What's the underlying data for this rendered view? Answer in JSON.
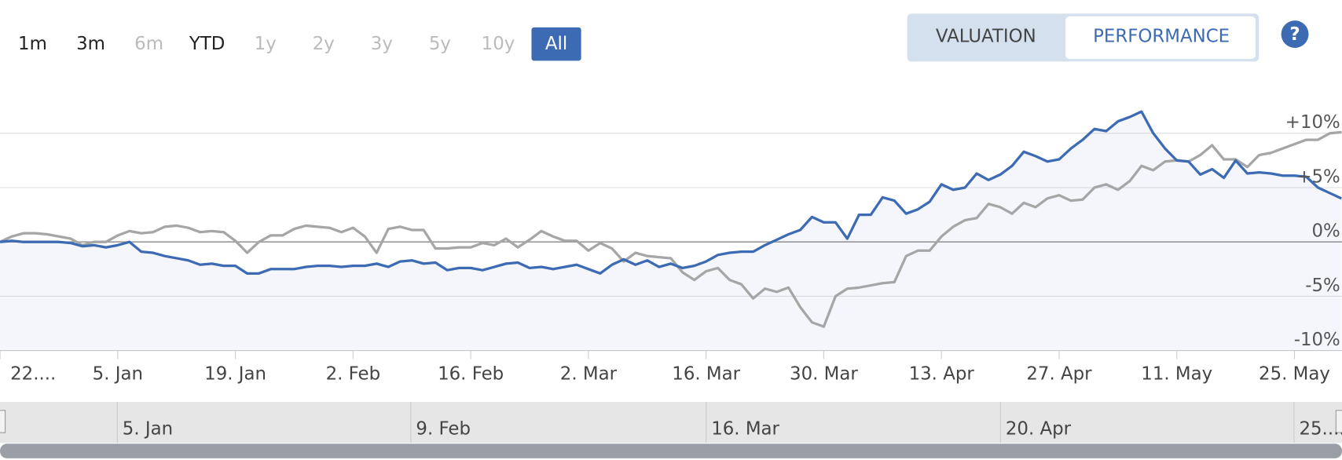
{
  "range_buttons": [
    "1m",
    "3m",
    "6m",
    "YTD",
    "1y",
    "2y",
    "3y",
    "5y",
    "10y",
    "All"
  ],
  "tabs": [
    "VALUATION",
    "PERFORMANCE"
  ],
  "help": "?",
  "chart_data": {
    "type": "line",
    "categories": [
      "22....",
      null,
      null,
      null,
      null,
      null,
      null,
      null,
      null,
      null,
      "5. Jan",
      null,
      null,
      null,
      null,
      null,
      null,
      null,
      null,
      null,
      "19. Jan",
      null,
      null,
      null,
      null,
      null,
      null,
      null,
      null,
      null,
      "2. Feb",
      null,
      null,
      null,
      null,
      null,
      null,
      null,
      null,
      null,
      "16. Feb",
      null,
      null,
      null,
      null,
      null,
      null,
      null,
      null,
      null,
      "2. Mar",
      null,
      null,
      null,
      null,
      null,
      null,
      null,
      null,
      null,
      "16. Mar",
      null,
      null,
      null,
      null,
      null,
      null,
      null,
      null,
      null,
      "30. Mar",
      null,
      null,
      null,
      null,
      null,
      null,
      null,
      null,
      null,
      "13. Apr",
      null,
      null,
      null,
      null,
      null,
      null,
      null,
      null,
      null,
      "27. Apr",
      null,
      null,
      null,
      null,
      null,
      null,
      null,
      null,
      null,
      "11. May",
      null,
      null,
      null,
      null,
      null,
      null,
      null,
      null,
      null,
      "25. May",
      null,
      null,
      null,
      null
    ],
    "series": [
      {
        "color": "#a6a6a6",
        "values": [
          0,
          0.5,
          0.8,
          0.8,
          0.7,
          0.5,
          0.3,
          -0.3,
          0,
          0,
          0.6,
          1.0,
          0.8,
          0.9,
          1.4,
          1.5,
          1.3,
          0.9,
          1.0,
          0.9,
          0.1,
          -1.0,
          0,
          0.6,
          0.6,
          1.2,
          1.5,
          1.4,
          1.3,
          0.9,
          1.3,
          0.5,
          -1.0,
          1.2,
          1.4,
          1.1,
          1.1,
          -0.6,
          -0.6,
          -0.5,
          -0.5,
          -0.1,
          -0.3,
          0.3,
          -0.5,
          0.2,
          1.0,
          0.5,
          0.1,
          0.1,
          -0.8,
          -0.1,
          -0.6,
          -1.8,
          -1.0,
          -1.3,
          -1.4,
          -1.5,
          -2.8,
          -3.5,
          -2.7,
          -2.4,
          -3.5,
          -3.9,
          -5.2,
          -4.3,
          -4.6,
          -4.2,
          -6.0,
          -7.4,
          -7.8,
          -5.0,
          -4.3,
          -4.2,
          -4.0,
          -3.8,
          -3.7,
          -1.3,
          -0.8,
          -0.8,
          0.5,
          1.4,
          2.0,
          2.2,
          3.5,
          3.2,
          2.6,
          3.6,
          3.2,
          4.0,
          4.3,
          3.8,
          3.9,
          5.0,
          5.3,
          4.8,
          5.6,
          7.0,
          6.6,
          7.4,
          7.5,
          7.4,
          8.0,
          8.9,
          7.6,
          7.6,
          6.9,
          8.0,
          8.2,
          8.6,
          9.0,
          9.4,
          9.4,
          10.0,
          10.1
        ]
      },
      {
        "color": "#3d6bb3",
        "area": true,
        "values": [
          0,
          0.1,
          0,
          0,
          0,
          0,
          -0.1,
          -0.4,
          -0.3,
          -0.5,
          -0.3,
          0,
          -0.9,
          -1.0,
          -1.3,
          -1.5,
          -1.7,
          -2.1,
          -2.0,
          -2.2,
          -2.2,
          -2.9,
          -2.9,
          -2.5,
          -2.5,
          -2.5,
          -2.3,
          -2.2,
          -2.2,
          -2.3,
          -2.2,
          -2.2,
          -2.0,
          -2.3,
          -1.8,
          -1.7,
          -2.0,
          -1.9,
          -2.6,
          -2.4,
          -2.4,
          -2.6,
          -2.3,
          -2.0,
          -1.9,
          -2.4,
          -2.3,
          -2.5,
          -2.3,
          -2.1,
          -2.5,
          -2.9,
          -2.1,
          -1.6,
          -2.1,
          -1.7,
          -2.3,
          -2.0,
          -2.4,
          -2.2,
          -1.8,
          -1.2,
          -1.0,
          -0.9,
          -0.9,
          -0.3,
          0.2,
          0.7,
          1.1,
          2.3,
          1.8,
          1.8,
          0.3,
          2.5,
          2.5,
          4.1,
          3.8,
          2.6,
          3.0,
          3.7,
          5.3,
          4.8,
          5.0,
          6.3,
          5.7,
          6.2,
          7.0,
          8.3,
          7.9,
          7.4,
          7.6,
          8.6,
          9.4,
          10.4,
          10.2,
          11.1,
          11.5,
          12.0,
          10.0,
          8.6,
          7.5,
          7.4,
          6.2,
          6.7,
          5.9,
          7.5,
          6.3,
          6.4,
          6.3,
          6.1,
          6.1,
          6.0,
          5.0,
          4.5,
          4.0
        ]
      }
    ],
    "ylim": [
      -10,
      14.4
    ],
    "yticks": [
      {
        "value": 10,
        "label": "+10%"
      },
      {
        "value": 5,
        "label": "+5%"
      },
      {
        "value": 0,
        "label": "0%"
      },
      {
        "value": -5,
        "label": "-5%"
      },
      {
        "value": -10,
        "label": "-10%"
      }
    ],
    "grid": true
  },
  "navigator": {
    "labels": [
      "5. Jan",
      "9. Feb",
      "16. Mar",
      "20. Apr",
      "25...."
    ]
  }
}
